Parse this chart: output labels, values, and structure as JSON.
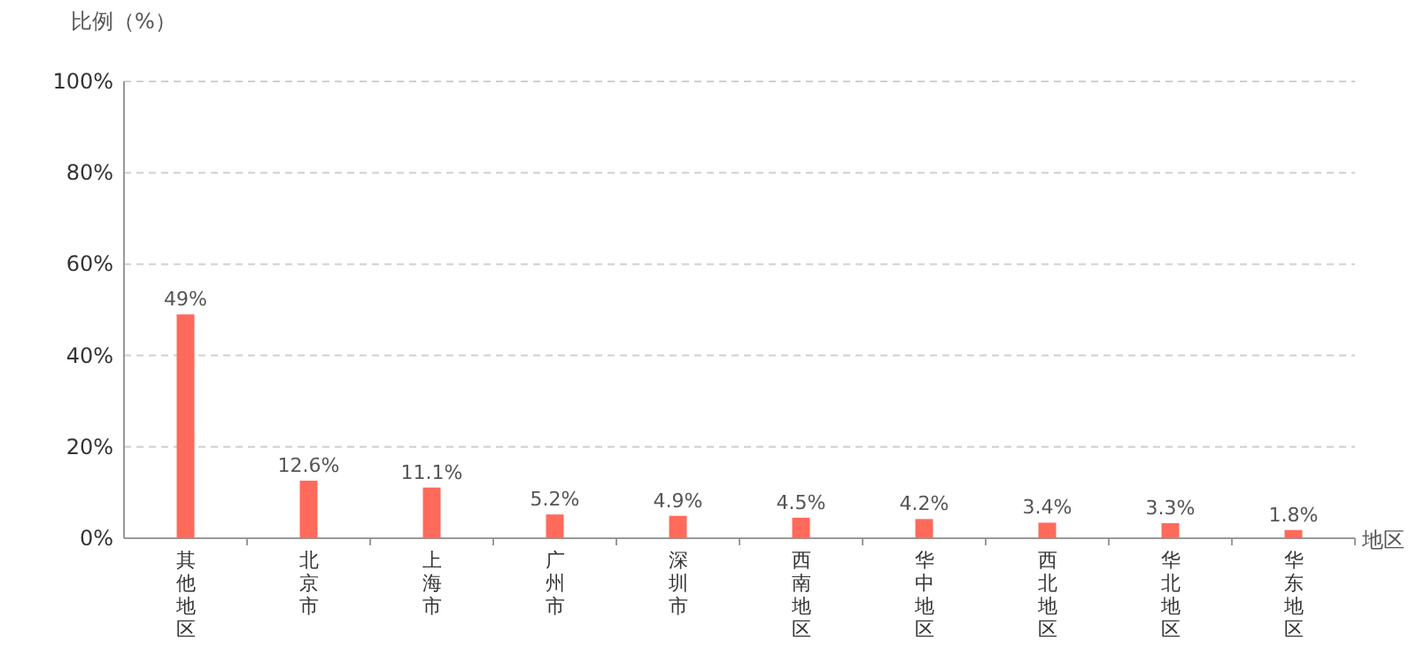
{
  "chart_data": {
    "type": "bar",
    "ylabel": "比例（%）",
    "xlabel": "地区",
    "categories": [
      "其他地区",
      "北京市",
      "上海市",
      "广州市",
      "深圳市",
      "西南地区",
      "华中地区",
      "西北地区",
      "华北地区",
      "华东地区"
    ],
    "values": [
      49,
      12.6,
      11.1,
      5.2,
      4.9,
      4.5,
      4.2,
      3.4,
      3.3,
      1.8
    ],
    "value_labels": [
      "49%",
      "12.6%",
      "11.1%",
      "5.2%",
      "4.9%",
      "4.5%",
      "4.2%",
      "3.4%",
      "3.3%",
      "1.8%"
    ],
    "color": "#ff6a5b",
    "ylim": [
      0,
      100
    ],
    "yticks": [
      {
        "value": 0,
        "label": "0%"
      },
      {
        "value": 20,
        "label": "20%"
      },
      {
        "value": 40,
        "label": "40%"
      },
      {
        "value": 60,
        "label": "60%"
      },
      {
        "value": 80,
        "label": "80%"
      },
      {
        "value": 100,
        "label": "100%"
      }
    ],
    "grid": "y"
  }
}
